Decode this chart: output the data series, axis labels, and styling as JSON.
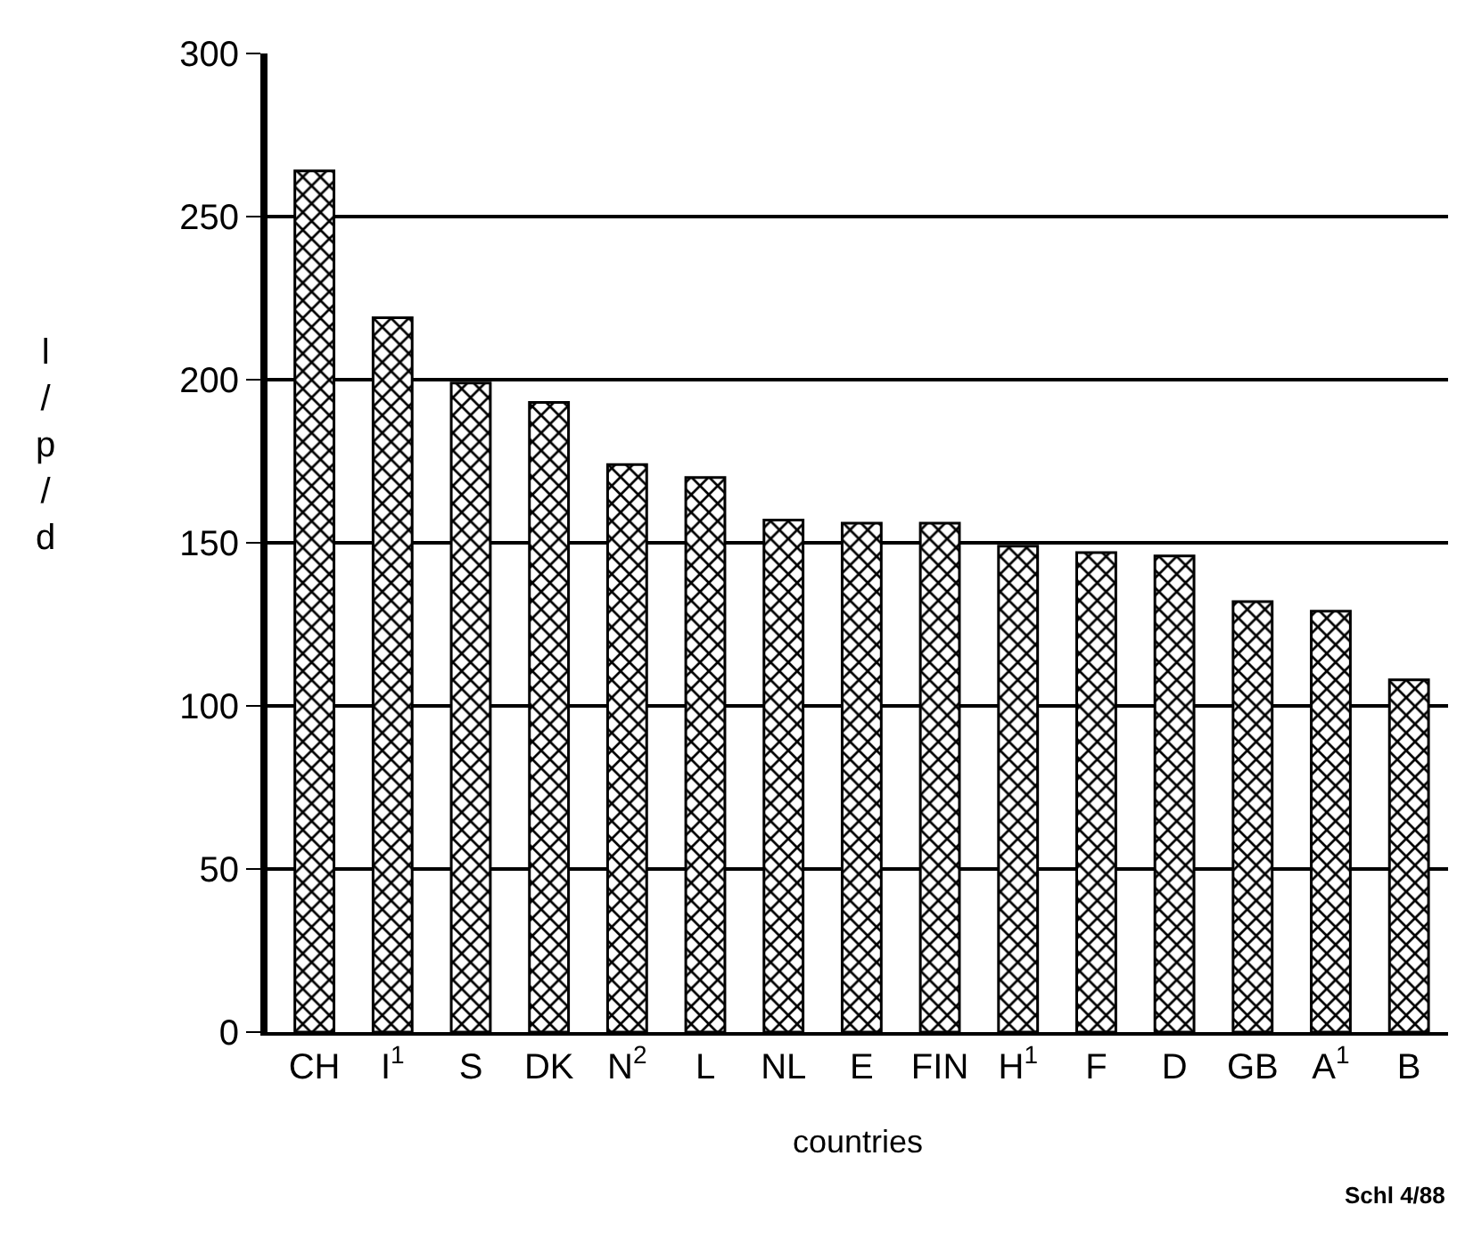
{
  "chart_data": {
    "type": "bar",
    "categories": [
      "CH",
      "I$^{1}$",
      "S",
      "DK",
      "N$^{2}$",
      "L",
      "NL",
      "E",
      "FIN",
      "H$^{1}$",
      "F",
      "D",
      "GB",
      "A$^{1}$",
      "B"
    ],
    "values": [
      264,
      219,
      199,
      193,
      174,
      170,
      157,
      156,
      156,
      149,
      147,
      146,
      132,
      129,
      108
    ],
    "color": "#000000",
    "xlabel": "countries",
    "ylabel": "l / p / d",
    "ylim": [
      0,
      300
    ],
    "yticks": [
      0,
      50,
      100,
      150,
      200,
      250,
      300
    ],
    "grid": "y",
    "legend": false,
    "annotations": [
      "Schl 4/88"
    ]
  }
}
